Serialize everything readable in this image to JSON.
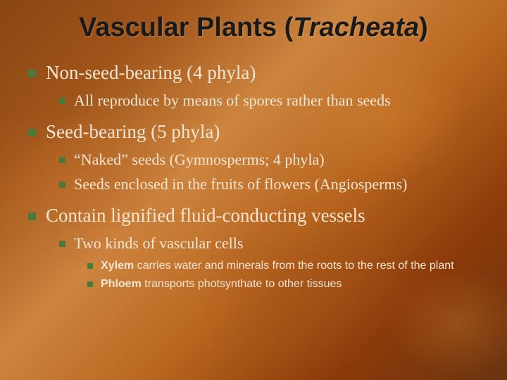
{
  "colors": {
    "bullet": "#4a7a3a",
    "title_text": "#1a1a1a",
    "body_text": "#f5e6d3",
    "bg_gradient": [
      "#8b4513",
      "#a0551a",
      "#cd853f",
      "#b8651e",
      "#8b3a0a",
      "#6b3410"
    ]
  },
  "typography": {
    "title_font": "Arial",
    "title_size_pt": 29,
    "body_font": "Georgia",
    "lvl1_size_pt": 20,
    "lvl2_size_pt": 17,
    "lvl3_font": "Arial",
    "lvl3_size_pt": 12
  },
  "title": {
    "main": "Vascular Plants ",
    "paren_open": "(",
    "italic": "Tracheata",
    "paren_close": ")"
  },
  "bullets": {
    "a": {
      "text": "Non-seed-bearing (4 phyla)",
      "sub": {
        "a": {
          "text": "All reproduce by means of spores rather than seeds"
        }
      }
    },
    "b": {
      "text": "Seed-bearing (5 phyla)",
      "sub": {
        "a": {
          "text": "“Naked” seeds (Gymnosperms; 4 phyla)"
        },
        "b": {
          "text": "Seeds enclosed in the fruits of flowers (Angiosperms)"
        }
      }
    },
    "c": {
      "text": "Contain lignified fluid-conducting vessels",
      "sub": {
        "a": {
          "text": "Two kinds of vascular cells",
          "sub": {
            "a": {
              "bold": "Xylem",
              "rest": " carries water and minerals from the roots to the rest of the plant"
            },
            "b": {
              "bold": "Phloem",
              "rest": " transports photsynthate to other tissues"
            }
          }
        }
      }
    }
  }
}
